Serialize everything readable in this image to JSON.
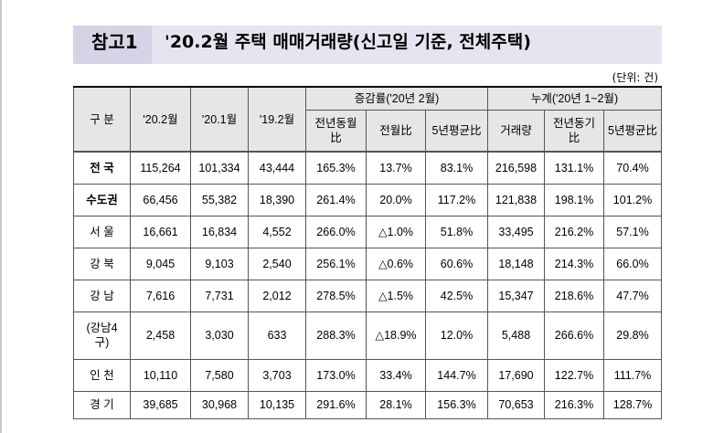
{
  "header": {
    "tag": "참고1",
    "title": "'20.2월 주택 매매거래량(신고일 기준, 전체주택)"
  },
  "unit": "(단위: 건)",
  "table": {
    "col_group": "구 분",
    "col_feb20": "'20.2월",
    "col_jan20": "'20.1월",
    "col_feb19": "'19.2월",
    "group_change": "증감률('20년 2월)",
    "group_cumulative": "누계('20년 1~2월)",
    "sub_yoy": "전년동월比",
    "sub_mom": "전월比",
    "sub_5yr": "5년평균比",
    "sub_volume": "거래량",
    "sub_cum_yoy": "전년동기比",
    "sub_cum_5yr": "5년평균比",
    "rows": [
      {
        "label": "전 국",
        "bold": true,
        "values": [
          "115,264",
          "101,334",
          "43,444",
          "165.3%",
          "13.7%",
          "83.1%",
          "216,598",
          "131.1%",
          "70.4%"
        ]
      },
      {
        "label": "수도권",
        "bold": true,
        "values": [
          "66,456",
          "55,382",
          "18,390",
          "261.4%",
          "20.0%",
          "117.2%",
          "121,838",
          "198.1%",
          "101.2%"
        ]
      },
      {
        "label": "서 울",
        "bold": false,
        "values": [
          "16,661",
          "16,834",
          "4,552",
          "266.0%",
          "△1.0%",
          "51.8%",
          "33,495",
          "216.2%",
          "57.1%"
        ]
      },
      {
        "label": "강 북",
        "bold": false,
        "values": [
          "9,045",
          "9,103",
          "2,540",
          "256.1%",
          "△0.6%",
          "60.6%",
          "18,148",
          "214.3%",
          "66.0%"
        ]
      },
      {
        "label": "강 남",
        "bold": false,
        "values": [
          "7,616",
          "7,731",
          "2,012",
          "278.5%",
          "△1.5%",
          "42.5%",
          "15,347",
          "218.6%",
          "47.7%"
        ]
      },
      {
        "label": "(강남4구)",
        "bold": false,
        "values": [
          "2,458",
          "3,030",
          "633",
          "288.3%",
          "△18.9%",
          "12.0%",
          "5,488",
          "266.6%",
          "29.8%"
        ]
      },
      {
        "label": "인 천",
        "bold": false,
        "values": [
          "10,110",
          "7,580",
          "3,703",
          "173.0%",
          "33.4%",
          "144.7%",
          "17,690",
          "122.7%",
          "111.7%"
        ]
      },
      {
        "label": "경 기",
        "bold": false,
        "values": [
          "39,685",
          "30,968",
          "10,135",
          "291.6%",
          "28.1%",
          "156.3%",
          "70,653",
          "216.3%",
          "128.7%"
        ]
      }
    ]
  }
}
